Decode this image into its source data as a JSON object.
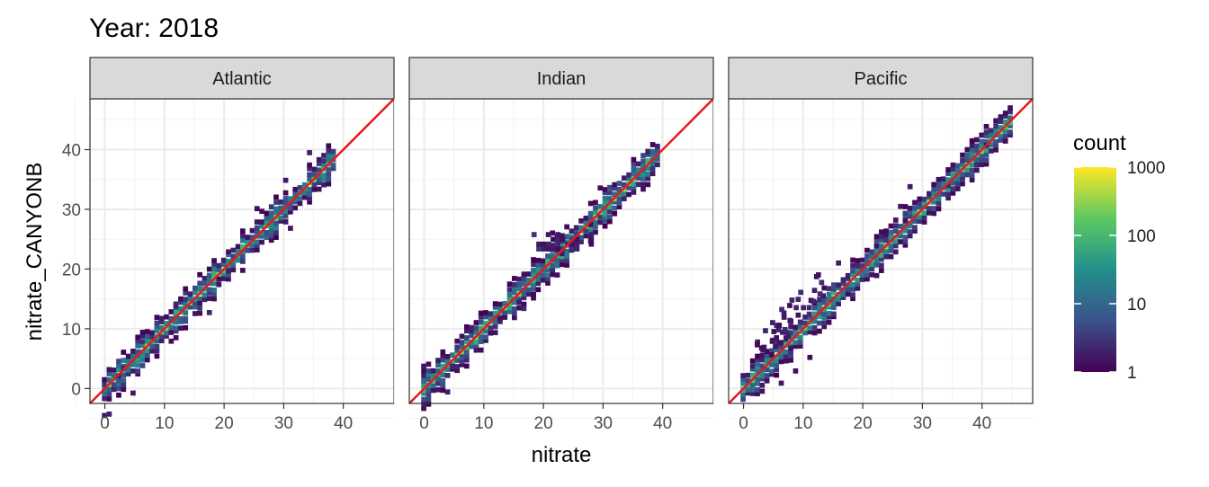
{
  "title": "Year: 2018",
  "chart_data": {
    "type": "heatmap",
    "subtype": "faceted 2D binned count (hexbin-style) with identity reference line",
    "title": "Year: 2018",
    "xlabel": "nitrate",
    "ylabel": "nitrate_CANYONB",
    "xlim": [
      -2.5,
      48.5
    ],
    "ylim": [
      -2.5,
      48.5
    ],
    "x_ticks": [
      0,
      10,
      20,
      30,
      40
    ],
    "y_ticks": [
      0,
      10,
      20,
      30,
      40
    ],
    "grid": true,
    "reference_line": {
      "slope": 1,
      "intercept": 0,
      "color": "#e41a1c"
    },
    "facets": [
      {
        "label": "Atlantic",
        "x_max": 38,
        "spread": 1.4
      },
      {
        "label": "Indian",
        "x_max": 39,
        "spread": 1.2
      },
      {
        "label": "Pacific",
        "x_max": 45,
        "spread": 1.5
      }
    ],
    "legend": {
      "title": "count",
      "position": "right",
      "scale": "log10",
      "range": [
        1,
        1000
      ],
      "ticks": [
        1,
        10,
        100,
        1000
      ],
      "colors": [
        "#440154",
        "#3b528b",
        "#21908c",
        "#5dc863",
        "#fde725"
      ]
    }
  }
}
